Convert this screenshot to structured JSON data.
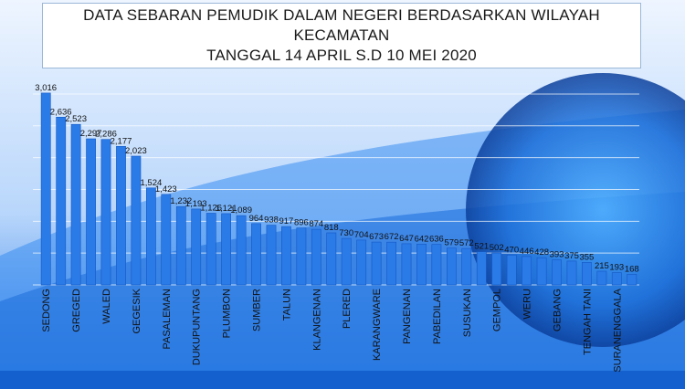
{
  "title_lines": [
    "DATA SEBARAN PEMUDIK DALAM NEGERI BERDASARKAN WILAYAH",
    "KECAMATAN",
    "TANGGAL 14 APRIL S.D 10 MEI 2020"
  ],
  "colors": {
    "bar": "#2a7ae8",
    "bar_dark": "#1459c4",
    "background_top": "#f4f9ff",
    "background_bottom": "#1b68d8",
    "grid": "#ffffff",
    "label": "#111111"
  },
  "chart_data": {
    "type": "bar",
    "title": "DATA SEBARAN PEMUDIK DALAM NEGERI BERDASARKAN WILAYAH KECAMATAN TANGGAL 14 APRIL S.D 10 MEI 2020",
    "categories": [
      "SEDONG",
      "",
      "GREGED",
      "",
      "WALED",
      "",
      "GEGESIK",
      "",
      "PASALEMAN",
      "",
      "DUKUPUNTANG",
      "",
      "PLUMBON",
      "",
      "SUMBER",
      "",
      "TALUN",
      "",
      "KLANGENAN",
      "",
      "PLERED",
      "",
      "KARANGWARE",
      "",
      "PANGENAN",
      "",
      "PABEDILAN",
      "",
      "SUSUKAN",
      "",
      "GEMPOL",
      "",
      "WERU",
      "",
      "GEBANG",
      "",
      "TENGAH TANI",
      "",
      "SURANENGGALA",
      ""
    ],
    "values": [
      3016,
      2636,
      2523,
      2297,
      2286,
      2177,
      2023,
      1524,
      1423,
      1232,
      1193,
      1126,
      1121,
      1089,
      964,
      938,
      917,
      896,
      874,
      818,
      730,
      704,
      673,
      672,
      647,
      642,
      636,
      579,
      572,
      521,
      502,
      470,
      446,
      428,
      393,
      375,
      355,
      215,
      193,
      168
    ],
    "value_labels": [
      "3,016",
      "2,636",
      "2,523",
      "2,297",
      "2,286",
      "2,177",
      "2,023",
      "1,524",
      "1,423",
      "1,232",
      "1,193",
      "1,126",
      "1,121",
      "1,089",
      "964",
      "938",
      "917",
      "896",
      "874",
      "818",
      "730",
      "704",
      "673",
      "672",
      "647",
      "642",
      "636",
      "579",
      "572",
      "521",
      "502",
      "470",
      "446",
      "428",
      "393",
      "375",
      "355",
      "215",
      "193",
      "168"
    ],
    "ylim": [
      0,
      3100
    ],
    "grid": true,
    "legend": "none",
    "xlabel": "",
    "ylabel": ""
  }
}
